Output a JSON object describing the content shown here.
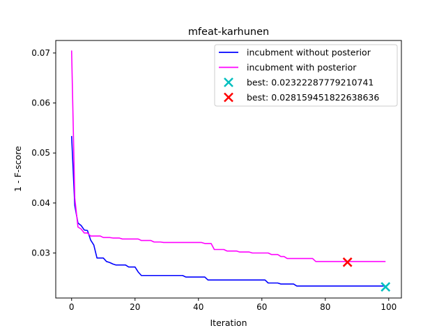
{
  "chart_data": {
    "type": "line",
    "title": "mfeat-karhunen",
    "xlabel": "Iteration",
    "ylabel": "1 - F-score",
    "xlim": [
      -5,
      104
    ],
    "ylim": [
      0.021,
      0.0725
    ],
    "xticks": [
      0,
      20,
      40,
      60,
      80,
      100
    ],
    "yticks": [
      0.03,
      0.04,
      0.05,
      0.06,
      0.07
    ],
    "xtick_labels": [
      "0",
      "20",
      "40",
      "60",
      "80",
      "100"
    ],
    "ytick_labels": [
      "0.03",
      "0.04",
      "0.05",
      "0.06",
      "0.07"
    ],
    "grid": false,
    "legend_position": "top-right",
    "series": [
      {
        "name": "incubment without posterior",
        "color": "#0000ff",
        "style": "step-line",
        "points": [
          [
            0,
            0.0534
          ],
          [
            1,
            0.0395
          ],
          [
            2,
            0.036
          ],
          [
            3,
            0.0355
          ],
          [
            4,
            0.0346
          ],
          [
            5,
            0.0345
          ],
          [
            6,
            0.0326
          ],
          [
            7,
            0.0316
          ],
          [
            8,
            0.029
          ],
          [
            10,
            0.029
          ],
          [
            11,
            0.0283
          ],
          [
            12,
            0.0281
          ],
          [
            13,
            0.0278
          ],
          [
            14,
            0.0276
          ],
          [
            17,
            0.0276
          ],
          [
            18,
            0.0272
          ],
          [
            20,
            0.0272
          ],
          [
            21,
            0.0262
          ],
          [
            22,
            0.0255
          ],
          [
            35,
            0.0255
          ],
          [
            36,
            0.0252
          ],
          [
            42,
            0.0252
          ],
          [
            43,
            0.0246
          ],
          [
            61,
            0.0246
          ],
          [
            62,
            0.024
          ],
          [
            65,
            0.024
          ],
          [
            66,
            0.0238
          ],
          [
            70,
            0.0238
          ],
          [
            71,
            0.0234
          ],
          [
            99,
            0.0234
          ]
        ]
      },
      {
        "name": "incubment with posterior",
        "color": "#ff00ff",
        "style": "step-line",
        "points": [
          [
            0,
            0.0705
          ],
          [
            1,
            0.041
          ],
          [
            2,
            0.0352
          ],
          [
            3,
            0.0348
          ],
          [
            4,
            0.034
          ],
          [
            5,
            0.034
          ],
          [
            6,
            0.0334
          ],
          [
            9,
            0.0334
          ],
          [
            10,
            0.0331
          ],
          [
            12,
            0.0331
          ],
          [
            13,
            0.033
          ],
          [
            15,
            0.033
          ],
          [
            16,
            0.0328
          ],
          [
            21,
            0.0328
          ],
          [
            22,
            0.0325
          ],
          [
            25,
            0.0325
          ],
          [
            26,
            0.0322
          ],
          [
            28,
            0.0322
          ],
          [
            29,
            0.0321
          ],
          [
            41,
            0.0321
          ],
          [
            42,
            0.0319
          ],
          [
            44,
            0.0319
          ],
          [
            45,
            0.0307
          ],
          [
            48,
            0.0307
          ],
          [
            49,
            0.0304
          ],
          [
            52,
            0.0304
          ],
          [
            53,
            0.0302
          ],
          [
            56,
            0.0302
          ],
          [
            57,
            0.03
          ],
          [
            62,
            0.03
          ],
          [
            63,
            0.0297
          ],
          [
            65,
            0.0297
          ],
          [
            66,
            0.0293
          ],
          [
            67,
            0.0293
          ],
          [
            68,
            0.0289
          ],
          [
            76,
            0.0289
          ],
          [
            77,
            0.0283
          ],
          [
            99,
            0.0283
          ]
        ]
      }
    ],
    "markers": [
      {
        "name": "best: 0.02322287779210741",
        "x": 99,
        "y": 0.02322287779210741,
        "color": "#00bfbf",
        "symbol": "x"
      },
      {
        "name": "best: 0.028159451822638636",
        "x": 87,
        "y": 0.028159451822638636,
        "color": "#ff0000",
        "symbol": "x"
      }
    ]
  }
}
